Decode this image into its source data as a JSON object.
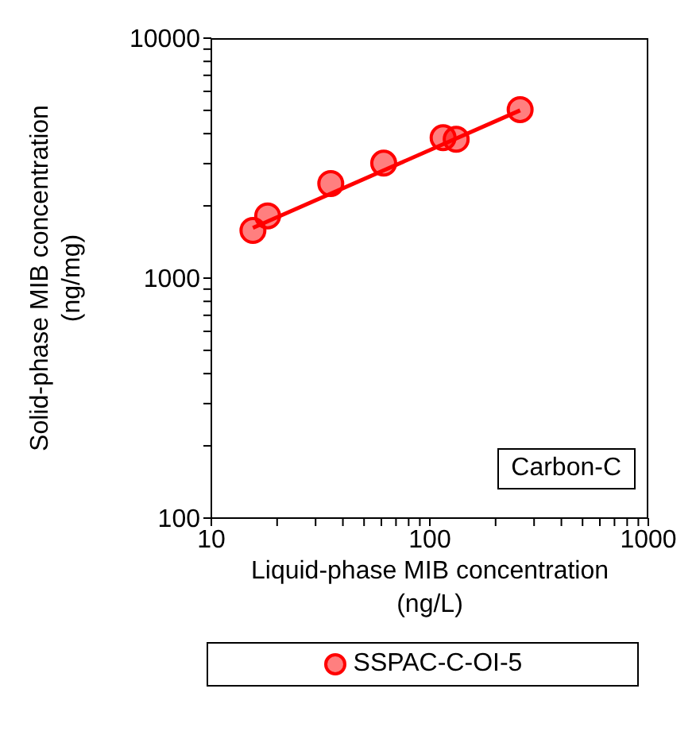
{
  "chart_data": {
    "type": "scatter",
    "xlabel": "Liquid-phase MIB concentration\n(ng/L)",
    "ylabel": "Solid-phase MIB concentration\n(ng/mg)",
    "log": "xy",
    "xlim": [
      10,
      1000
    ],
    "ylim": [
      100,
      10000
    ],
    "xticks": [
      10,
      {
        "value": 20,
        "label": null
      },
      {
        "value": 30,
        "label": null
      },
      {
        "value": 40,
        "label": null
      },
      {
        "value": 50,
        "label": null
      },
      {
        "value": 60,
        "label": null
      },
      {
        "value": 70,
        "label": null
      },
      {
        "value": 80,
        "label": null
      },
      {
        "value": 90,
        "label": null
      },
      100,
      {
        "value": 200,
        "label": null
      },
      {
        "value": 300,
        "label": null
      },
      {
        "value": 400,
        "label": null
      },
      {
        "value": 500,
        "label": null
      },
      {
        "value": 600,
        "label": null
      },
      {
        "value": 700,
        "label": null
      },
      {
        "value": 800,
        "label": null
      },
      {
        "value": 900,
        "label": null
      },
      1000
    ],
    "yticks": [
      100,
      {
        "value": 200,
        "label": null
      },
      {
        "value": 300,
        "label": null
      },
      {
        "value": 400,
        "label": null
      },
      {
        "value": 500,
        "label": null
      },
      {
        "value": 600,
        "label": null
      },
      {
        "value": 700,
        "label": null
      },
      {
        "value": 800,
        "label": null
      },
      {
        "value": 900,
        "label": null
      },
      1000,
      {
        "value": 2000,
        "label": null
      },
      {
        "value": 3000,
        "label": null
      },
      {
        "value": 4000,
        "label": null
      },
      {
        "value": 5000,
        "label": null
      },
      {
        "value": 6000,
        "label": null
      },
      {
        "value": 7000,
        "label": null
      },
      {
        "value": 8000,
        "label": null
      },
      {
        "value": 9000,
        "label": null
      },
      10000
    ],
    "grid": false,
    "legend": "bottom",
    "annotations": [
      "Carbon-C"
    ],
    "series": [
      {
        "name": "SSPAC-C-OI-5",
        "marker": "circle",
        "color": "#ff0000",
        "x": [
          15.5,
          18.1,
          35.2,
          61.5,
          115,
          132,
          259
        ],
        "values": [
          1580,
          1817,
          2478,
          3013,
          3846,
          3790,
          5038
        ]
      },
      {
        "type": "line",
        "marker": "none",
        "color": "#ff0000",
        "x": [
          15.5,
          259
        ],
        "values": [
          1620,
          5000
        ]
      }
    ]
  }
}
